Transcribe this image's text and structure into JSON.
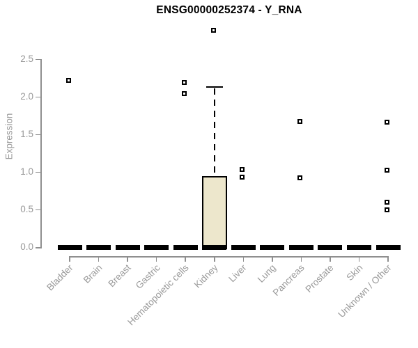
{
  "chart_data": {
    "type": "boxplot",
    "title": "ENSG00000252374 - Y_RNA",
    "ylabel": "Expression",
    "xlabel": "",
    "ylim": [
      0,
      2.9
    ],
    "grid": false,
    "legend": null,
    "yticks": [
      {
        "value": 0.0,
        "label": "0.0"
      },
      {
        "value": 0.5,
        "label": "0.5"
      },
      {
        "value": 1.0,
        "label": "1.0"
      },
      {
        "value": 1.5,
        "label": "1.5"
      },
      {
        "value": 2.0,
        "label": "2.0"
      },
      {
        "value": 2.5,
        "label": "2.5"
      }
    ],
    "categories": [
      "Bladder",
      "Brain",
      "Breast",
      "Gastric",
      "Hematopoietic cells",
      "Kidney",
      "Liver",
      "Lung",
      "Pancreas",
      "Prostate",
      "Skin",
      "Unknown / Other"
    ],
    "boxes": [
      {
        "category": "Bladder",
        "min": 0,
        "q1": 0,
        "median": 0,
        "q3": 0,
        "max": 0,
        "outliers": [
          2.21
        ]
      },
      {
        "category": "Brain",
        "min": 0,
        "q1": 0,
        "median": 0,
        "q3": 0,
        "max": 0,
        "outliers": []
      },
      {
        "category": "Breast",
        "min": 0,
        "q1": 0,
        "median": 0,
        "q3": 0,
        "max": 0,
        "outliers": []
      },
      {
        "category": "Gastric",
        "min": 0,
        "q1": 0,
        "median": 0,
        "q3": 0,
        "max": 0,
        "outliers": []
      },
      {
        "category": "Hematopoietic cells",
        "min": 0,
        "q1": 0,
        "median": 0,
        "q3": 0,
        "max": 0,
        "outliers": [
          2.19,
          2.04
        ]
      },
      {
        "category": "Kidney",
        "min": 0,
        "q1": 0,
        "median": 0,
        "q3": 0.93,
        "max": 2.13,
        "outliers": [
          2.88
        ]
      },
      {
        "category": "Liver",
        "min": 0,
        "q1": 0,
        "median": 0,
        "q3": 0,
        "max": 0,
        "outliers": [
          1.03,
          0.93
        ]
      },
      {
        "category": "Lung",
        "min": 0,
        "q1": 0,
        "median": 0,
        "q3": 0,
        "max": 0,
        "outliers": []
      },
      {
        "category": "Pancreas",
        "min": 0,
        "q1": 0,
        "median": 0,
        "q3": 0,
        "max": 0,
        "outliers": [
          1.67,
          0.92
        ]
      },
      {
        "category": "Prostate",
        "min": 0,
        "q1": 0,
        "median": 0,
        "q3": 0,
        "max": 0,
        "outliers": []
      },
      {
        "category": "Skin",
        "min": 0,
        "q1": 0,
        "median": 0,
        "q3": 0,
        "max": 0,
        "outliers": []
      },
      {
        "category": "Unknown / Other",
        "min": 0,
        "q1": 0,
        "median": 0,
        "q3": 0,
        "max": 0,
        "outliers": [
          1.66,
          1.02,
          0.6,
          0.49
        ]
      }
    ],
    "colors": {
      "background": "#FFFFFF",
      "box_fill": "#EDE7CC",
      "box_border": "#000000",
      "median": "#000000",
      "whisker": "#000000",
      "outlier_border": "#000000",
      "outlier_fill": "#FFFFFF",
      "axis_line": "#8F8F8F",
      "tick_text": "#999999",
      "title_text": "#000000"
    }
  }
}
